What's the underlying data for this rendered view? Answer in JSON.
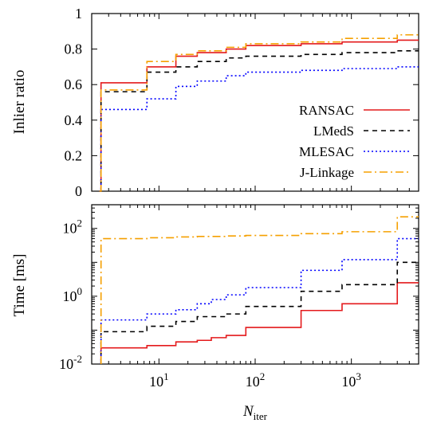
{
  "chart_data": [
    {
      "type": "line",
      "step": true,
      "ylabel": "Inlier ratio",
      "xscale": "log",
      "xlim": [
        2,
        5000
      ],
      "ylim": [
        0,
        1
      ],
      "yticks": [
        0,
        0.2,
        0.4,
        0.6,
        0.8,
        1
      ],
      "ytick_labels": [
        "0",
        "0.2",
        "0.4",
        "0.6",
        "0.8",
        "1"
      ],
      "legend_position": "bottom-right",
      "colors": {
        "RANSAC": "#e41a1c",
        "LMedS": "#000000",
        "MLESAC": "#0000ff",
        "J-Linkage": "#f5a000"
      },
      "series": [
        {
          "name": "RANSAC",
          "style": "solid",
          "x": [
            2.4,
            2.5,
            7.5,
            15,
            25,
            50,
            80,
            300,
            800,
            3000,
            5000
          ],
          "y": [
            0,
            0.61,
            0.7,
            0.76,
            0.78,
            0.8,
            0.82,
            0.83,
            0.84,
            0.85,
            0.85
          ]
        },
        {
          "name": "LMedS",
          "style": "dashed",
          "x": [
            2.4,
            2.5,
            7.5,
            15,
            25,
            50,
            80,
            300,
            800,
            3000,
            5000
          ],
          "y": [
            0,
            0.56,
            0.67,
            0.7,
            0.73,
            0.75,
            0.76,
            0.77,
            0.78,
            0.79,
            0.79
          ]
        },
        {
          "name": "MLESAC",
          "style": "dotted",
          "x": [
            2.4,
            2.5,
            7.5,
            15,
            25,
            50,
            80,
            300,
            800,
            3000,
            5000
          ],
          "y": [
            0,
            0.46,
            0.52,
            0.59,
            0.62,
            0.65,
            0.67,
            0.68,
            0.69,
            0.7,
            0.7
          ]
        },
        {
          "name": "J-Linkage",
          "style": "dashdot",
          "x": [
            2.4,
            2.5,
            7.5,
            15,
            25,
            50,
            80,
            300,
            800,
            3000,
            5000
          ],
          "y": [
            0,
            0.57,
            0.73,
            0.77,
            0.79,
            0.81,
            0.83,
            0.84,
            0.86,
            0.88,
            0.89
          ]
        }
      ]
    },
    {
      "type": "line",
      "step": true,
      "ylabel": "Time [ms]",
      "xlabel": "N",
      "xlabel_sub": "iter",
      "xscale": "log",
      "yscale": "log",
      "xlim": [
        2,
        5000
      ],
      "ylim": [
        0.01,
        500
      ],
      "xticks": [
        10,
        100,
        1000
      ],
      "xtick_bases": [
        "10",
        "10",
        "10"
      ],
      "xtick_exps": [
        "1",
        "2",
        "3"
      ],
      "yticks": [
        0.01,
        1,
        100
      ],
      "ytick_bases": [
        "10",
        "10",
        "10"
      ],
      "ytick_exps": [
        "-2",
        "0",
        "2"
      ],
      "colors": {
        "RANSAC": "#e41a1c",
        "LMedS": "#000000",
        "MLESAC": "#0000ff",
        "J-Linkage": "#f5a000"
      },
      "series": [
        {
          "name": "RANSAC",
          "style": "solid",
          "x": [
            2.5,
            7.5,
            15,
            25,
            35,
            50,
            80,
            300,
            800,
            3000,
            5000
          ],
          "y": [
            0.03,
            0.035,
            0.045,
            0.05,
            0.06,
            0.07,
            0.12,
            0.38,
            0.6,
            2.5,
            2.5
          ]
        },
        {
          "name": "LMedS",
          "style": "dashed",
          "x": [
            2.5,
            7.5,
            15,
            25,
            50,
            80,
            300,
            800,
            3000,
            5000
          ],
          "y": [
            0.09,
            0.13,
            0.18,
            0.25,
            0.3,
            0.5,
            1.4,
            2.2,
            10,
            10
          ]
        },
        {
          "name": "MLESAC",
          "style": "dotted",
          "x": [
            2.5,
            7.5,
            15,
            25,
            35,
            50,
            80,
            300,
            800,
            3000,
            5000
          ],
          "y": [
            0.2,
            0.3,
            0.4,
            0.6,
            0.8,
            1.1,
            1.8,
            5.8,
            12,
            50,
            50
          ]
        },
        {
          "name": "J-Linkage",
          "style": "dashdot",
          "x": [
            2.5,
            7.5,
            15,
            25,
            50,
            80,
            300,
            800,
            3000,
            5000
          ],
          "y": [
            50,
            53,
            56,
            58,
            60,
            62,
            70,
            80,
            220,
            220
          ]
        }
      ]
    }
  ]
}
